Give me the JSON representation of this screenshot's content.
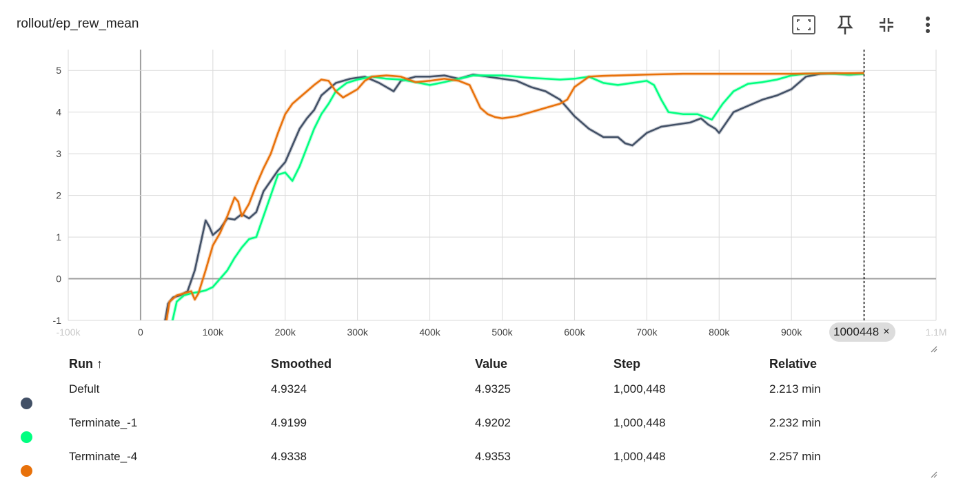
{
  "header": {
    "title": "rollout/ep_rew_mean"
  },
  "toolbar": [
    "fit-to-screen-icon",
    "pin-icon",
    "collapse-icon",
    "more-vert-icon"
  ],
  "step_chip": {
    "label": "1000448",
    "close": "×"
  },
  "table": {
    "headers": {
      "run": "Run ↑",
      "smoothed": "Smoothed",
      "value": "Value",
      "step": "Step",
      "relative": "Relative"
    },
    "rows": [
      {
        "run": "Defult",
        "smoothed": "4.9324",
        "value": "4.9325",
        "step": "1,000,448",
        "relative": "2.213 min",
        "color": "#425066"
      },
      {
        "run": "Terminate_-1",
        "smoothed": "4.9199",
        "value": "4.9202",
        "step": "1,000,448",
        "relative": "2.232 min",
        "color": "#00ff80"
      },
      {
        "run": "Terminate_-4",
        "smoothed": "4.9338",
        "value": "4.9353",
        "step": "1,000,448",
        "relative": "2.257 min",
        "color": "#e8710a"
      }
    ]
  },
  "chart_data": {
    "type": "line",
    "title": "rollout/ep_rew_mean",
    "xlabel": "",
    "ylabel": "",
    "xlim": [
      -100000,
      1100000
    ],
    "ylim": [
      -1,
      5.5
    ],
    "xticks": [
      -100000,
      0,
      100000,
      200000,
      300000,
      400000,
      500000,
      600000,
      700000,
      800000,
      900000,
      1000000,
      1100000
    ],
    "xtick_labels": [
      "-100k",
      "0",
      "100k",
      "200k",
      "300k",
      "400k",
      "500k",
      "600k",
      "700k",
      "800k",
      "900k",
      "1M",
      "1.1M"
    ],
    "yticks": [
      -1,
      0,
      1,
      2,
      3,
      4,
      5
    ],
    "ytick_labels": [
      "-1",
      "0",
      "1",
      "2",
      "3",
      "4",
      "5"
    ],
    "grid": true,
    "cursor_step": 1000448,
    "series": [
      {
        "name": "Defult",
        "color": "#425066",
        "points": [
          [
            33000,
            -1.1
          ],
          [
            38000,
            -0.6
          ],
          [
            45000,
            -0.45
          ],
          [
            55000,
            -0.4
          ],
          [
            65000,
            -0.3
          ],
          [
            75000,
            0.2
          ],
          [
            85000,
            1.0
          ],
          [
            90000,
            1.4
          ],
          [
            95000,
            1.25
          ],
          [
            100000,
            1.05
          ],
          [
            110000,
            1.2
          ],
          [
            120000,
            1.45
          ],
          [
            130000,
            1.42
          ],
          [
            140000,
            1.55
          ],
          [
            150000,
            1.45
          ],
          [
            160000,
            1.6
          ],
          [
            170000,
            2.1
          ],
          [
            180000,
            2.35
          ],
          [
            190000,
            2.6
          ],
          [
            200000,
            2.8
          ],
          [
            210000,
            3.2
          ],
          [
            220000,
            3.6
          ],
          [
            230000,
            3.85
          ],
          [
            240000,
            4.05
          ],
          [
            250000,
            4.4
          ],
          [
            270000,
            4.7
          ],
          [
            290000,
            4.8
          ],
          [
            310000,
            4.85
          ],
          [
            330000,
            4.7
          ],
          [
            340000,
            4.6
          ],
          [
            350000,
            4.5
          ],
          [
            360000,
            4.75
          ],
          [
            380000,
            4.85
          ],
          [
            400000,
            4.85
          ],
          [
            420000,
            4.88
          ],
          [
            440000,
            4.8
          ],
          [
            460000,
            4.9
          ],
          [
            480000,
            4.85
          ],
          [
            500000,
            4.8
          ],
          [
            520000,
            4.75
          ],
          [
            540000,
            4.6
          ],
          [
            560000,
            4.5
          ],
          [
            580000,
            4.3
          ],
          [
            600000,
            3.9
          ],
          [
            620000,
            3.6
          ],
          [
            640000,
            3.4
          ],
          [
            660000,
            3.4
          ],
          [
            670000,
            3.25
          ],
          [
            680000,
            3.2
          ],
          [
            690000,
            3.35
          ],
          [
            700000,
            3.5
          ],
          [
            720000,
            3.65
          ],
          [
            740000,
            3.7
          ],
          [
            760000,
            3.75
          ],
          [
            775000,
            3.85
          ],
          [
            785000,
            3.7
          ],
          [
            795000,
            3.6
          ],
          [
            800000,
            3.5
          ],
          [
            810000,
            3.75
          ],
          [
            820000,
            4.0
          ],
          [
            840000,
            4.15
          ],
          [
            860000,
            4.3
          ],
          [
            880000,
            4.4
          ],
          [
            900000,
            4.55
          ],
          [
            920000,
            4.85
          ],
          [
            940000,
            4.92
          ],
          [
            960000,
            4.93
          ],
          [
            980000,
            4.9
          ],
          [
            1000448,
            4.9325
          ]
        ]
      },
      {
        "name": "Terminate_-1",
        "color": "#00ff80",
        "points": [
          [
            43000,
            -1.1
          ],
          [
            50000,
            -0.55
          ],
          [
            60000,
            -0.4
          ],
          [
            70000,
            -0.35
          ],
          [
            80000,
            -0.32
          ],
          [
            90000,
            -0.28
          ],
          [
            100000,
            -0.2
          ],
          [
            110000,
            0.0
          ],
          [
            120000,
            0.2
          ],
          [
            130000,
            0.5
          ],
          [
            140000,
            0.75
          ],
          [
            150000,
            0.95
          ],
          [
            160000,
            1.0
          ],
          [
            170000,
            1.5
          ],
          [
            180000,
            2.0
          ],
          [
            190000,
            2.5
          ],
          [
            200000,
            2.55
          ],
          [
            210000,
            2.35
          ],
          [
            220000,
            2.7
          ],
          [
            230000,
            3.15
          ],
          [
            240000,
            3.6
          ],
          [
            250000,
            3.95
          ],
          [
            260000,
            4.2
          ],
          [
            270000,
            4.5
          ],
          [
            285000,
            4.7
          ],
          [
            300000,
            4.78
          ],
          [
            320000,
            4.85
          ],
          [
            340000,
            4.8
          ],
          [
            360000,
            4.78
          ],
          [
            380000,
            4.72
          ],
          [
            400000,
            4.65
          ],
          [
            420000,
            4.72
          ],
          [
            440000,
            4.8
          ],
          [
            460000,
            4.88
          ],
          [
            480000,
            4.88
          ],
          [
            500000,
            4.88
          ],
          [
            520000,
            4.85
          ],
          [
            540000,
            4.82
          ],
          [
            560000,
            4.8
          ],
          [
            580000,
            4.78
          ],
          [
            600000,
            4.8
          ],
          [
            620000,
            4.85
          ],
          [
            640000,
            4.7
          ],
          [
            660000,
            4.65
          ],
          [
            680000,
            4.7
          ],
          [
            700000,
            4.75
          ],
          [
            710000,
            4.65
          ],
          [
            720000,
            4.3
          ],
          [
            730000,
            4.0
          ],
          [
            750000,
            3.95
          ],
          [
            770000,
            3.95
          ],
          [
            790000,
            3.82
          ],
          [
            805000,
            4.2
          ],
          [
            820000,
            4.5
          ],
          [
            840000,
            4.68
          ],
          [
            860000,
            4.72
          ],
          [
            880000,
            4.78
          ],
          [
            900000,
            4.88
          ],
          [
            920000,
            4.92
          ],
          [
            940000,
            4.93
          ],
          [
            960000,
            4.92
          ],
          [
            980000,
            4.9
          ],
          [
            1000448,
            4.9202
          ]
        ]
      },
      {
        "name": "Terminate_-4",
        "color": "#e8710a",
        "points": [
          [
            35000,
            -1.1
          ],
          [
            40000,
            -0.55
          ],
          [
            50000,
            -0.4
          ],
          [
            60000,
            -0.35
          ],
          [
            70000,
            -0.3
          ],
          [
            75000,
            -0.5
          ],
          [
            80000,
            -0.35
          ],
          [
            90000,
            0.2
          ],
          [
            100000,
            0.8
          ],
          [
            110000,
            1.1
          ],
          [
            120000,
            1.5
          ],
          [
            130000,
            1.95
          ],
          [
            135000,
            1.85
          ],
          [
            140000,
            1.5
          ],
          [
            150000,
            1.8
          ],
          [
            160000,
            2.25
          ],
          [
            170000,
            2.65
          ],
          [
            180000,
            3.0
          ],
          [
            190000,
            3.5
          ],
          [
            200000,
            3.95
          ],
          [
            210000,
            4.2
          ],
          [
            220000,
            4.35
          ],
          [
            230000,
            4.5
          ],
          [
            240000,
            4.65
          ],
          [
            250000,
            4.78
          ],
          [
            260000,
            4.75
          ],
          [
            270000,
            4.5
          ],
          [
            280000,
            4.35
          ],
          [
            290000,
            4.45
          ],
          [
            300000,
            4.55
          ],
          [
            310000,
            4.75
          ],
          [
            320000,
            4.85
          ],
          [
            340000,
            4.88
          ],
          [
            360000,
            4.85
          ],
          [
            380000,
            4.72
          ],
          [
            400000,
            4.75
          ],
          [
            420000,
            4.8
          ],
          [
            440000,
            4.75
          ],
          [
            455000,
            4.65
          ],
          [
            470000,
            4.1
          ],
          [
            480000,
            3.95
          ],
          [
            490000,
            3.88
          ],
          [
            500000,
            3.85
          ],
          [
            520000,
            3.9
          ],
          [
            540000,
            4.0
          ],
          [
            560000,
            4.1
          ],
          [
            580000,
            4.2
          ],
          [
            590000,
            4.3
          ],
          [
            600000,
            4.6
          ],
          [
            620000,
            4.85
          ],
          [
            640000,
            4.87
          ],
          [
            660000,
            4.88
          ],
          [
            700000,
            4.9
          ],
          [
            750000,
            4.92
          ],
          [
            800000,
            4.92
          ],
          [
            850000,
            4.92
          ],
          [
            900000,
            4.92
          ],
          [
            950000,
            4.93
          ],
          [
            1000448,
            4.9353
          ]
        ]
      }
    ]
  }
}
